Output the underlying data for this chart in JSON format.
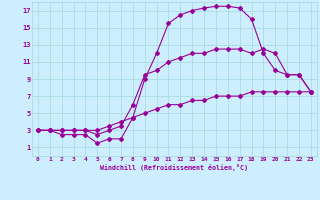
{
  "xlabel": "Windchill (Refroidissement éolien,°C)",
  "background_color": "#cceeff",
  "grid_color": "#aadddd",
  "line_color": "#990099",
  "xlim": [
    -0.5,
    23.5
  ],
  "ylim": [
    0,
    18
  ],
  "xticks": [
    0,
    1,
    2,
    3,
    4,
    5,
    6,
    7,
    8,
    9,
    10,
    11,
    12,
    13,
    14,
    15,
    16,
    17,
    18,
    19,
    20,
    21,
    22,
    23
  ],
  "yticks": [
    1,
    3,
    5,
    7,
    9,
    11,
    13,
    15,
    17
  ],
  "curve1_x": [
    0,
    1,
    2,
    3,
    4,
    5,
    6,
    7,
    8,
    9,
    10,
    11,
    12,
    13,
    14,
    15,
    16,
    17,
    18,
    19,
    20,
    21,
    22,
    23
  ],
  "curve1_y": [
    3,
    3,
    2.5,
    2.5,
    2.5,
    1.5,
    2,
    2,
    4.5,
    9,
    12,
    15.5,
    16.5,
    17,
    17.3,
    17.5,
    17.5,
    17.3,
    16,
    12,
    10,
    9.5,
    9.5,
    7.5
  ],
  "curve2_x": [
    0,
    1,
    2,
    3,
    4,
    5,
    6,
    7,
    8,
    9,
    10,
    11,
    12,
    13,
    14,
    15,
    16,
    17,
    18,
    19,
    20,
    21,
    22,
    23
  ],
  "curve2_y": [
    3,
    3,
    3,
    3,
    3,
    2.5,
    3,
    3.5,
    6,
    9.5,
    10,
    11,
    11.5,
    12,
    12,
    12.5,
    12.5,
    12.5,
    12,
    12.5,
    12,
    9.5,
    9.5,
    7.5
  ],
  "curve3_x": [
    0,
    1,
    2,
    3,
    4,
    5,
    6,
    7,
    8,
    9,
    10,
    11,
    12,
    13,
    14,
    15,
    16,
    17,
    18,
    19,
    20,
    21,
    22,
    23
  ],
  "curve3_y": [
    3,
    3,
    3,
    3,
    3,
    3,
    3.5,
    4,
    4.5,
    5,
    5.5,
    6,
    6,
    6.5,
    6.5,
    7,
    7,
    7,
    7.5,
    7.5,
    7.5,
    7.5,
    7.5,
    7.5
  ]
}
